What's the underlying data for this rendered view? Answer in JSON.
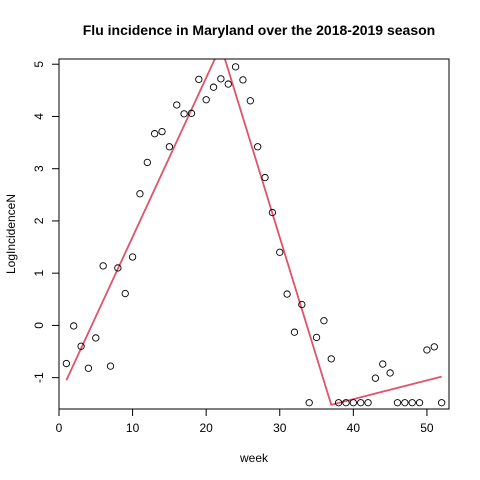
{
  "chart_data": {
    "type": "scatter",
    "title": "Flu incidence in Maryland over the 2018-2019 season",
    "xlabel": "week",
    "ylabel": "LogIncidenceN",
    "xlim": [
      0,
      53
    ],
    "ylim": [
      -1.6,
      5.1
    ],
    "xticks": [
      0,
      10,
      20,
      30,
      40,
      50
    ],
    "yticks": [
      -1,
      0,
      1,
      2,
      3,
      4,
      5
    ],
    "points": {
      "x": [
        1,
        2,
        3,
        4,
        5,
        6,
        7,
        8,
        9,
        10,
        11,
        12,
        13,
        14,
        15,
        16,
        17,
        18,
        19,
        20,
        21,
        22,
        23,
        24,
        25,
        26,
        27,
        28,
        29,
        30,
        31,
        32,
        33,
        34,
        35,
        36,
        37,
        38,
        39,
        40,
        41,
        42,
        43,
        44,
        45,
        46,
        47,
        48,
        49,
        50,
        51,
        52
      ],
      "y": [
        -0.73,
        -0.01,
        -0.4,
        -0.82,
        -0.24,
        1.14,
        -0.78,
        1.1,
        0.61,
        1.31,
        2.52,
        3.12,
        3.67,
        3.71,
        3.42,
        4.22,
        4.05,
        4.06,
        4.71,
        4.32,
        4.56,
        4.72,
        4.62,
        4.95,
        4.7,
        4.3,
        3.42,
        2.83,
        2.16,
        1.4,
        0.6,
        -0.13,
        0.4,
        -1.48,
        -0.23,
        0.09,
        -0.64,
        -1.48,
        -1.48,
        -1.48,
        -1.48,
        -1.48,
        -1.01,
        -0.74,
        -0.91,
        -1.48,
        -1.48,
        -1.48,
        -1.48,
        -0.47,
        -0.41,
        -1.48
      ]
    },
    "fit_line": {
      "color": "#DF536B",
      "x": [
        1,
        22,
        37,
        52
      ],
      "y": [
        -1.05,
        5.35,
        -1.52,
        -0.98
      ]
    },
    "grid": false,
    "legend": "none"
  }
}
